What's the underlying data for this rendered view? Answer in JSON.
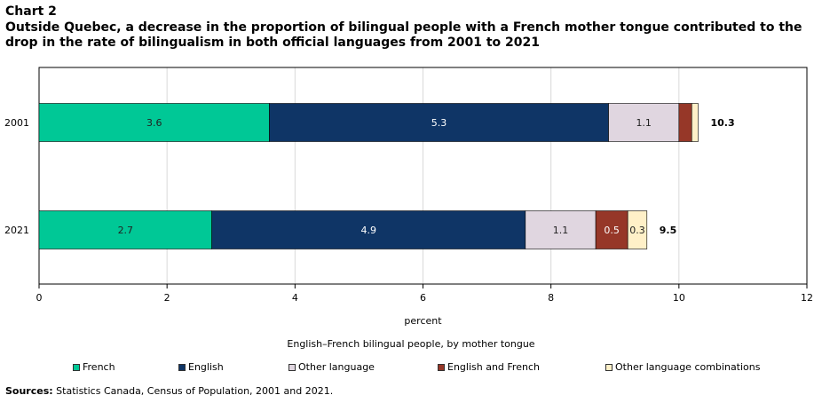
{
  "header": {
    "label": "Chart 2",
    "title": "Outside Quebec, a decrease in the proportion of bilingual  people with a French mother tongue contributed to the drop in the rate of bilingualism  in both official  languages from 2001 to 2021"
  },
  "chart_data": {
    "type": "bar",
    "orientation": "horizontal",
    "stacked": true,
    "categories": [
      "2001",
      "2021"
    ],
    "series": [
      {
        "name": "French",
        "color": "#00c896",
        "values": [
          3.6,
          2.7
        ],
        "labels": [
          "3.6",
          "2.7"
        ]
      },
      {
        "name": "English",
        "color": "#0f3566",
        "values": [
          5.3,
          4.9
        ],
        "labels": [
          "5.3",
          "4.9"
        ]
      },
      {
        "name": "Other language",
        "color": "#e0d6e0",
        "values": [
          1.1,
          1.1
        ],
        "labels": [
          "1.1",
          "1.1"
        ]
      },
      {
        "name": "English and French",
        "color": "#963728",
        "values": [
          0.2,
          0.5
        ],
        "labels": [
          "",
          "0.5"
        ]
      },
      {
        "name": "Other language combinations",
        "color": "#fff0c8",
        "values": [
          0.1,
          0.3
        ],
        "labels": [
          "",
          "0.3"
        ]
      }
    ],
    "totals": [
      "10.3",
      "9.5"
    ],
    "xlabel": "percent",
    "xlim": [
      0,
      12
    ],
    "xticks": [
      0,
      2,
      4,
      6,
      8,
      10,
      12
    ],
    "grid": true,
    "legend_title": "English–French bilingual people, by mother tongue",
    "legend_position": "bottom"
  },
  "sources": {
    "label": "Sources:",
    "text": " Statistics Canada, Census of Population, 2001 and 2021."
  }
}
